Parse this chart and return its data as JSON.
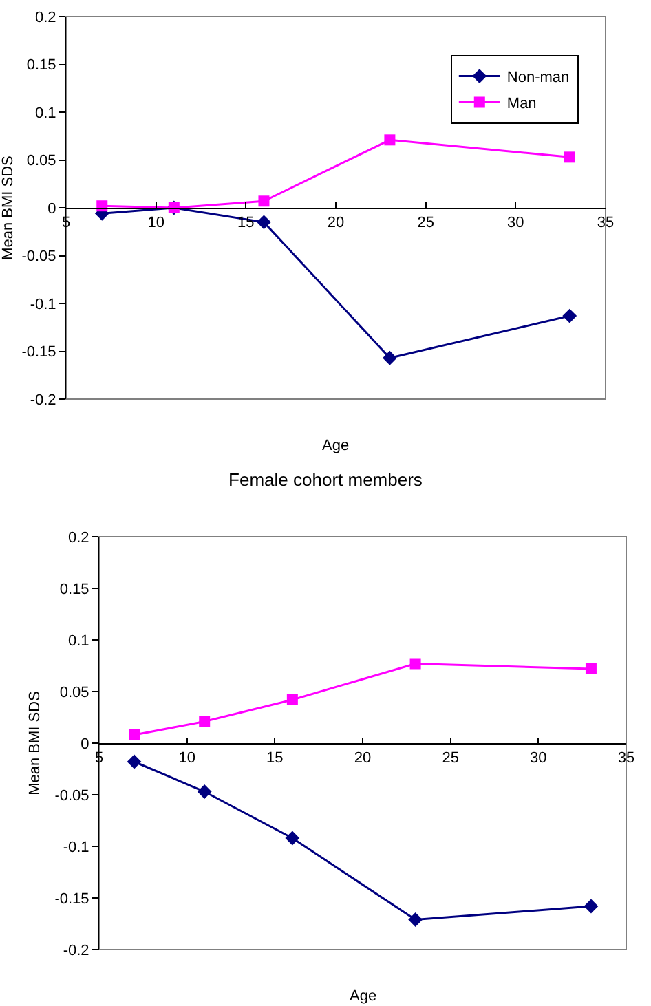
{
  "chart_data": [
    {
      "type": "line",
      "xlabel": "Age",
      "ylabel": "Mean BMI SDS",
      "x": [
        7,
        11,
        16,
        23,
        33
      ],
      "xlim": [
        5,
        35
      ],
      "xticks": [
        5,
        10,
        15,
        20,
        25,
        30,
        35
      ],
      "ylim": [
        -0.2,
        0.2
      ],
      "yticks": [
        -0.2,
        -0.15,
        -0.1,
        -0.05,
        0,
        0.05,
        0.1,
        0.15,
        0.2
      ],
      "grid": false,
      "legend": "top right",
      "line_style": "solid",
      "series": [
        {
          "name": "Non-man",
          "color": "#000080",
          "marker": "diamond",
          "values": [
            -0.006,
            0,
            -0.015,
            -0.157,
            -0.113
          ]
        },
        {
          "name": "Man",
          "color": "#ff00ff",
          "marker": "square",
          "values": [
            0.002,
            0,
            0.007,
            0.071,
            0.053
          ]
        }
      ]
    },
    {
      "type": "line",
      "title": "Female cohort members",
      "xlabel": "Age",
      "ylabel": "Mean BMI SDS",
      "x": [
        7,
        11,
        16,
        23,
        33
      ],
      "xlim": [
        5,
        35
      ],
      "xticks": [
        5,
        10,
        15,
        20,
        25,
        30,
        35
      ],
      "ylim": [
        -0.2,
        0.2
      ],
      "yticks": [
        -0.2,
        -0.15,
        -0.1,
        -0.05,
        0,
        0.05,
        0.1,
        0.15,
        0.2
      ],
      "grid": false,
      "legend": false,
      "line_style": "solid",
      "series": [
        {
          "color": "#000080",
          "marker": "diamond",
          "values": [
            -0.018,
            -0.047,
            -0.092,
            -0.171,
            -0.158
          ]
        },
        {
          "color": "#ff00ff",
          "marker": "square",
          "values": [
            0.008,
            0.021,
            0.042,
            0.077,
            0.072
          ]
        }
      ]
    }
  ]
}
